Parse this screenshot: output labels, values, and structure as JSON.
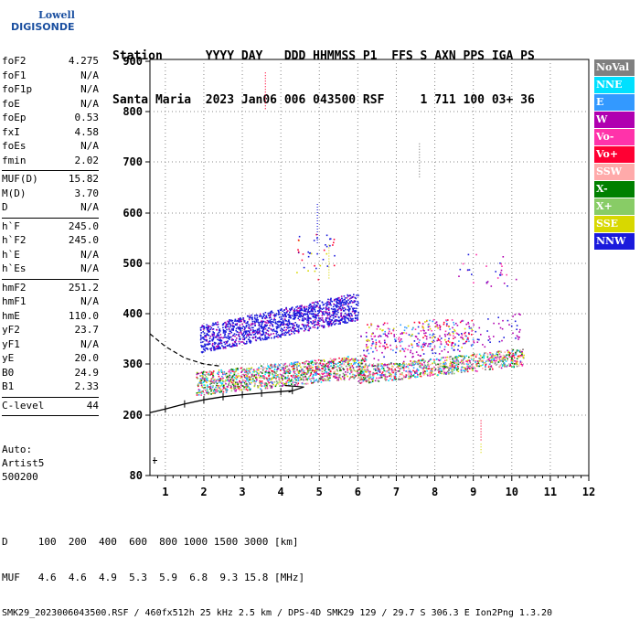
{
  "logo": {
    "line1": "Lowell",
    "line2": "DIGISONDE"
  },
  "header": {
    "row1": "Station      YYYY DAY   DDD HHMMSS P1  FFS S AXN PPS IGA PS",
    "row2": "Santa Maria  2023 Jan06 006 043500 RSF     1 711 100 03+ 36"
  },
  "params": [
    {
      "label": "foF2",
      "value": "4.275"
    },
    {
      "label": "foF1",
      "value": "N/A"
    },
    {
      "label": "foF1p",
      "value": "N/A"
    },
    {
      "label": "foE",
      "value": "N/A"
    },
    {
      "label": "foEp",
      "value": "0.53"
    },
    {
      "label": "fxI",
      "value": "4.58"
    },
    {
      "label": "foEs",
      "value": "N/A"
    },
    {
      "label": "fmin",
      "value": "2.02"
    }
  ],
  "params2": [
    {
      "label": "MUF(D)",
      "value": "15.82"
    },
    {
      "label": "M(D)",
      "value": "3.70"
    },
    {
      "label": "D",
      "value": "N/A"
    }
  ],
  "params3": [
    {
      "label": "h`F",
      "value": "245.0"
    },
    {
      "label": "h`F2",
      "value": "245.0"
    },
    {
      "label": "h`E",
      "value": "N/A"
    },
    {
      "label": "h`Es",
      "value": "N/A"
    }
  ],
  "params4": [
    {
      "label": "hmF2",
      "value": "251.2"
    },
    {
      "label": "hmF1",
      "value": "N/A"
    },
    {
      "label": "hmE",
      "value": "110.0"
    },
    {
      "label": "yF2",
      "value": "23.7"
    },
    {
      "label": "yF1",
      "value": "N/A"
    },
    {
      "label": "yE",
      "value": "20.0"
    },
    {
      "label": "B0",
      "value": "24.9"
    },
    {
      "label": "B1",
      "value": "2.33"
    }
  ],
  "params5": [
    {
      "label": "C-level",
      "value": "44"
    }
  ],
  "auto": {
    "line1": "Auto:",
    "line2": "Artist5",
    "line3": "500200"
  },
  "legend": [
    {
      "label": "NoVal",
      "color": "#808080"
    },
    {
      "label": "NNE",
      "color": "#00e0ff"
    },
    {
      "label": "E",
      "color": "#3399ff"
    },
    {
      "label": "W",
      "color": "#b000b0"
    },
    {
      "label": "Vo-",
      "color": "#ff33aa"
    },
    {
      "label": "Vo+",
      "color": "#ff0033"
    },
    {
      "label": "SSW",
      "color": "#ffaaaa"
    },
    {
      "label": "X-",
      "color": "#008000"
    },
    {
      "label": "X+",
      "color": "#88cc66"
    },
    {
      "label": "SSE",
      "color": "#d8d800"
    },
    {
      "label": "NNW",
      "color": "#1a1adc"
    }
  ],
  "footer": {
    "row1": "D     100  200  400  600  800 1000 1500 3000 [km]",
    "row2": "MUF   4.6  4.6  4.9  5.3  5.9  6.8  9.3 15.8 [MHz]",
    "row3": "SMK29_2023006043500.RSF / 460fx512h 25 kHz 2.5 km / DPS-4D SMK29 129 / 29.7 S 306.3 E Ion2Png 1.3.20"
  },
  "chart_data": {
    "type": "scatter",
    "xlabel": "",
    "ylabel": "",
    "xlim": [
      0.6,
      12
    ],
    "ylim": [
      80,
      900
    ],
    "x_ticks": [
      "1",
      "2",
      "3",
      "4",
      "5",
      "6",
      "7",
      "8",
      "9",
      "10",
      "11",
      "12"
    ],
    "y_ticks": [
      "80",
      "200",
      "300",
      "400",
      "500",
      "600",
      "700",
      "800",
      "900"
    ],
    "series": [
      {
        "name": "NNW",
        "values": [
          [
            2.0,
            370
          ],
          [
            2.5,
            375
          ],
          [
            3.0,
            385
          ],
          [
            3.5,
            395
          ],
          [
            4.0,
            405
          ],
          [
            4.5,
            412
          ],
          [
            5.0,
            420
          ],
          [
            5.5,
            410
          ],
          [
            6.0,
            395
          ]
        ]
      },
      {
        "name": "Vo+",
        "values": [
          [
            2.0,
            265
          ],
          [
            3.0,
            270
          ],
          [
            4.0,
            280
          ],
          [
            5.0,
            285
          ],
          [
            6.5,
            290
          ],
          [
            7.5,
            300
          ],
          [
            8.5,
            305
          ],
          [
            10.0,
            320
          ]
        ]
      },
      {
        "name": "NoVal",
        "values": [
          [
            2.0,
            260
          ],
          [
            3.0,
            265
          ],
          [
            4.0,
            270
          ],
          [
            5.0,
            275
          ],
          [
            7.0,
            285
          ],
          [
            9.0,
            300
          ]
        ]
      }
    ]
  }
}
